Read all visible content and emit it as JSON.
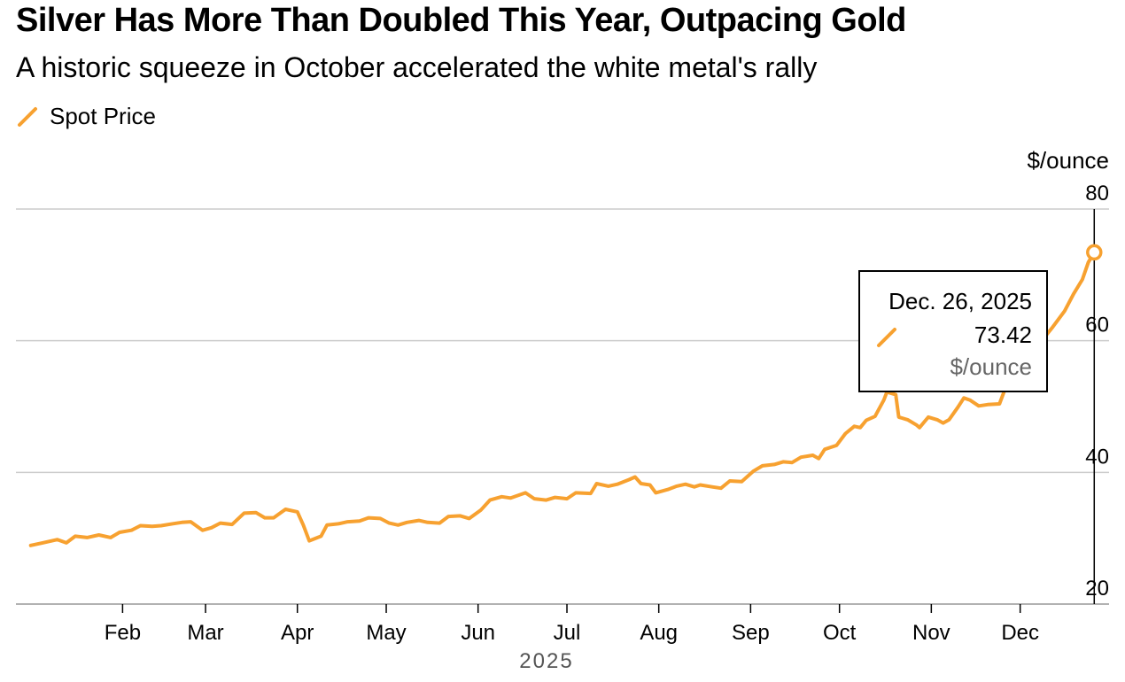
{
  "title": "Silver Has More Than Doubled This Year, Outpacing Gold",
  "subtitle": "A historic squeeze in October accelerated the white metal's rally",
  "legend": {
    "label": "Spot Price",
    "icon": "diagonal-line-swatch"
  },
  "colors": {
    "series": "#f7a130",
    "grid": "#cccccc",
    "text": "#000000",
    "muted": "#666666"
  },
  "tooltip": {
    "date": "Dec. 26, 2025",
    "value": "73.42",
    "unit": "$/ounce"
  },
  "chart_data": {
    "type": "line",
    "title": "Silver Has More Than Doubled This Year, Outpacing Gold",
    "subtitle": "A historic squeeze in October accelerated the white metal's rally",
    "xlabel": "2025",
    "ylabel": "$/ounce",
    "ylim": [
      20,
      80
    ],
    "yticks": [
      80,
      60,
      40,
      20
    ],
    "xticks": [
      "Feb",
      "Mar",
      "Apr",
      "May",
      "Jun",
      "Jul",
      "Aug",
      "Sep",
      "Oct",
      "Nov",
      "Dec"
    ],
    "xtick_dates": [
      "2025-02-01",
      "2025-03-01",
      "2025-04-01",
      "2025-05-01",
      "2025-06-01",
      "2025-07-01",
      "2025-08-01",
      "2025-09-01",
      "2025-10-01",
      "2025-11-01",
      "2025-12-01"
    ],
    "xlim": [
      "2024-12-27",
      "2025-12-31"
    ],
    "grid": true,
    "legend_position": "top-left",
    "series": [
      {
        "name": "Spot Price",
        "points": [
          [
            "2025-01-01",
            28.9
          ],
          [
            "2025-01-05",
            29.3
          ],
          [
            "2025-01-10",
            29.8
          ],
          [
            "2025-01-13",
            29.3
          ],
          [
            "2025-01-16",
            30.3
          ],
          [
            "2025-01-20",
            30.1
          ],
          [
            "2025-01-24",
            30.5
          ],
          [
            "2025-01-28",
            30.1
          ],
          [
            "2025-01-31",
            30.9
          ],
          [
            "2025-02-04",
            31.2
          ],
          [
            "2025-02-07",
            31.9
          ],
          [
            "2025-02-11",
            31.8
          ],
          [
            "2025-02-14",
            31.9
          ],
          [
            "2025-02-18",
            32.2
          ],
          [
            "2025-02-21",
            32.4
          ],
          [
            "2025-02-24",
            32.5
          ],
          [
            "2025-02-28",
            31.2
          ],
          [
            "2025-03-03",
            31.6
          ],
          [
            "2025-03-06",
            32.3
          ],
          [
            "2025-03-10",
            32.1
          ],
          [
            "2025-03-14",
            33.8
          ],
          [
            "2025-03-18",
            33.9
          ],
          [
            "2025-03-21",
            33.1
          ],
          [
            "2025-03-24",
            33.1
          ],
          [
            "2025-03-28",
            34.4
          ],
          [
            "2025-04-01",
            34.0
          ],
          [
            "2025-04-03",
            32.0
          ],
          [
            "2025-04-05",
            29.6
          ],
          [
            "2025-04-09",
            30.3
          ],
          [
            "2025-04-11",
            32.0
          ],
          [
            "2025-04-15",
            32.2
          ],
          [
            "2025-04-18",
            32.5
          ],
          [
            "2025-04-22",
            32.6
          ],
          [
            "2025-04-25",
            33.1
          ],
          [
            "2025-04-29",
            33.0
          ],
          [
            "2025-05-02",
            32.3
          ],
          [
            "2025-05-05",
            32.0
          ],
          [
            "2025-05-08",
            32.4
          ],
          [
            "2025-05-12",
            32.7
          ],
          [
            "2025-05-15",
            32.4
          ],
          [
            "2025-05-19",
            32.3
          ],
          [
            "2025-05-22",
            33.3
          ],
          [
            "2025-05-26",
            33.4
          ],
          [
            "2025-05-29",
            33.0
          ],
          [
            "2025-06-02",
            34.3
          ],
          [
            "2025-06-05",
            35.8
          ],
          [
            "2025-06-09",
            36.3
          ],
          [
            "2025-06-12",
            36.1
          ],
          [
            "2025-06-17",
            36.9
          ],
          [
            "2025-06-20",
            36.0
          ],
          [
            "2025-06-24",
            35.8
          ],
          [
            "2025-06-27",
            36.2
          ],
          [
            "2025-07-01",
            36.0
          ],
          [
            "2025-07-04",
            36.9
          ],
          [
            "2025-07-09",
            36.8
          ],
          [
            "2025-07-11",
            38.3
          ],
          [
            "2025-07-15",
            37.9
          ],
          [
            "2025-07-18",
            38.2
          ],
          [
            "2025-07-22",
            38.9
          ],
          [
            "2025-07-24",
            39.3
          ],
          [
            "2025-07-26",
            38.3
          ],
          [
            "2025-07-29",
            38.1
          ],
          [
            "2025-07-31",
            36.9
          ],
          [
            "2025-08-04",
            37.4
          ],
          [
            "2025-08-07",
            37.9
          ],
          [
            "2025-08-10",
            38.2
          ],
          [
            "2025-08-13",
            37.8
          ],
          [
            "2025-08-15",
            38.1
          ],
          [
            "2025-08-19",
            37.8
          ],
          [
            "2025-08-22",
            37.6
          ],
          [
            "2025-08-25",
            38.7
          ],
          [
            "2025-08-29",
            38.6
          ],
          [
            "2025-09-02",
            40.2
          ],
          [
            "2025-09-05",
            41.0
          ],
          [
            "2025-09-09",
            41.2
          ],
          [
            "2025-09-12",
            41.6
          ],
          [
            "2025-09-15",
            41.5
          ],
          [
            "2025-09-18",
            42.3
          ],
          [
            "2025-09-22",
            42.6
          ],
          [
            "2025-09-24",
            42.1
          ],
          [
            "2025-09-26",
            43.5
          ],
          [
            "2025-09-30",
            44.1
          ],
          [
            "2025-10-03",
            45.9
          ],
          [
            "2025-10-06",
            47.0
          ],
          [
            "2025-10-08",
            46.8
          ],
          [
            "2025-10-10",
            47.9
          ],
          [
            "2025-10-13",
            48.5
          ],
          [
            "2025-10-16",
            51.0
          ],
          [
            "2025-10-17",
            52.2
          ],
          [
            "2025-10-20",
            51.8
          ],
          [
            "2025-10-21",
            48.4
          ],
          [
            "2025-10-24",
            48.0
          ],
          [
            "2025-10-27",
            47.2
          ],
          [
            "2025-10-28",
            46.8
          ],
          [
            "2025-10-31",
            48.4
          ],
          [
            "2025-11-03",
            48.0
          ],
          [
            "2025-11-05",
            47.5
          ],
          [
            "2025-11-07",
            48.0
          ],
          [
            "2025-11-10",
            49.9
          ],
          [
            "2025-11-12",
            51.3
          ],
          [
            "2025-11-14",
            51.0
          ],
          [
            "2025-11-17",
            50.1
          ],
          [
            "2025-11-20",
            50.3
          ],
          [
            "2025-11-24",
            50.4
          ],
          [
            "2025-11-26",
            52.8
          ],
          [
            "2025-11-28",
            54.1
          ],
          [
            "2025-12-01",
            57.2
          ],
          [
            "2025-12-05",
            58.3
          ],
          [
            "2025-12-09",
            60.4
          ],
          [
            "2025-12-12",
            62.1
          ],
          [
            "2025-12-16",
            64.5
          ],
          [
            "2025-12-19",
            67.1
          ],
          [
            "2025-12-22",
            69.3
          ],
          [
            "2025-12-24",
            71.9
          ],
          [
            "2025-12-26",
            73.42
          ]
        ]
      }
    ],
    "highlight": {
      "date": "2025-12-26",
      "value": 73.42
    }
  }
}
